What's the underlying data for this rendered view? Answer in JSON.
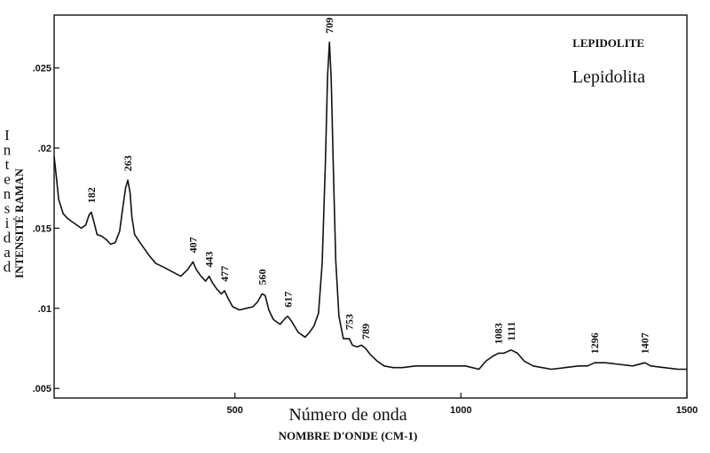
{
  "chart_data": {
    "type": "line",
    "title": "LEPIDOLITE",
    "subtitle": "Lepidolita",
    "xlabel": "NOMBRE D'ONDE (CM-1)",
    "xlabel_es": "Número de onda",
    "ylabel": "INTENSITÉ RAMAN",
    "ylabel_es": "Intensidad",
    "xlim": [
      100,
      1500
    ],
    "ylim": [
      0.0044,
      0.0283
    ],
    "x_ticks": [
      500,
      1000,
      1500
    ],
    "y_ticks": [
      ".005",
      ".01",
      ".015",
      ".02",
      ".025"
    ],
    "y_tick_values": [
      0.005,
      0.01,
      0.015,
      0.02,
      0.025
    ],
    "grid": false,
    "series": [
      {
        "points": [
          [
            100,
            0.0195
          ],
          [
            105,
            0.0182
          ],
          [
            110,
            0.0168
          ],
          [
            120,
            0.0159
          ],
          [
            130,
            0.0156
          ],
          [
            145,
            0.0153
          ],
          [
            160,
            0.015
          ],
          [
            170,
            0.0152
          ],
          [
            177,
            0.0158
          ],
          [
            182,
            0.016
          ],
          [
            188,
            0.0154
          ],
          [
            195,
            0.0146
          ],
          [
            205,
            0.0145
          ],
          [
            215,
            0.0143
          ],
          [
            225,
            0.014
          ],
          [
            235,
            0.0141
          ],
          [
            245,
            0.0148
          ],
          [
            252,
            0.0163
          ],
          [
            258,
            0.0175
          ],
          [
            263,
            0.018
          ],
          [
            268,
            0.0172
          ],
          [
            272,
            0.0157
          ],
          [
            278,
            0.0146
          ],
          [
            290,
            0.0141
          ],
          [
            300,
            0.0137
          ],
          [
            310,
            0.0133
          ],
          [
            325,
            0.0128
          ],
          [
            340,
            0.0126
          ],
          [
            360,
            0.0123
          ],
          [
            380,
            0.012
          ],
          [
            395,
            0.0124
          ],
          [
            407,
            0.0129
          ],
          [
            415,
            0.0124
          ],
          [
            425,
            0.012
          ],
          [
            435,
            0.0117
          ],
          [
            443,
            0.012
          ],
          [
            450,
            0.0116
          ],
          [
            460,
            0.0112
          ],
          [
            470,
            0.0109
          ],
          [
            477,
            0.0111
          ],
          [
            485,
            0.0106
          ],
          [
            495,
            0.0101
          ],
          [
            510,
            0.0099
          ],
          [
            525,
            0.01
          ],
          [
            540,
            0.0101
          ],
          [
            550,
            0.0104
          ],
          [
            560,
            0.0109
          ],
          [
            567,
            0.0108
          ],
          [
            575,
            0.0099
          ],
          [
            585,
            0.0093
          ],
          [
            600,
            0.009
          ],
          [
            612,
            0.0094
          ],
          [
            617,
            0.0095
          ],
          [
            625,
            0.0092
          ],
          [
            640,
            0.0085
          ],
          [
            655,
            0.0082
          ],
          [
            665,
            0.0085
          ],
          [
            675,
            0.0089
          ],
          [
            685,
            0.0097
          ],
          [
            693,
            0.0128
          ],
          [
            700,
            0.019
          ],
          [
            705,
            0.0245
          ],
          [
            709,
            0.0266
          ],
          [
            713,
            0.0243
          ],
          [
            718,
            0.0185
          ],
          [
            723,
            0.013
          ],
          [
            730,
            0.0095
          ],
          [
            740,
            0.0081
          ],
          [
            753,
            0.0081
          ],
          [
            760,
            0.0077
          ],
          [
            770,
            0.0076
          ],
          [
            780,
            0.0077
          ],
          [
            789,
            0.0075
          ],
          [
            800,
            0.0071
          ],
          [
            815,
            0.0067
          ],
          [
            830,
            0.0064
          ],
          [
            850,
            0.0063
          ],
          [
            870,
            0.0063
          ],
          [
            900,
            0.0064
          ],
          [
            930,
            0.0064
          ],
          [
            960,
            0.0064
          ],
          [
            990,
            0.0064
          ],
          [
            1010,
            0.0064
          ],
          [
            1025,
            0.0063
          ],
          [
            1040,
            0.0062
          ],
          [
            1055,
            0.0067
          ],
          [
            1070,
            0.007
          ],
          [
            1083,
            0.0072
          ],
          [
            1095,
            0.0072
          ],
          [
            1111,
            0.0074
          ],
          [
            1125,
            0.0072
          ],
          [
            1140,
            0.0067
          ],
          [
            1160,
            0.0064
          ],
          [
            1180,
            0.0063
          ],
          [
            1200,
            0.0062
          ],
          [
            1230,
            0.0063
          ],
          [
            1260,
            0.0064
          ],
          [
            1280,
            0.0064
          ],
          [
            1296,
            0.0066
          ],
          [
            1320,
            0.0066
          ],
          [
            1350,
            0.0065
          ],
          [
            1380,
            0.0064
          ],
          [
            1407,
            0.0066
          ],
          [
            1420,
            0.0064
          ],
          [
            1450,
            0.0063
          ],
          [
            1480,
            0.0062
          ],
          [
            1500,
            0.0062
          ]
        ]
      }
    ],
    "peaks": [
      {
        "label": "182",
        "x": 182,
        "y": 0.016
      },
      {
        "label": "263",
        "x": 263,
        "y": 0.018
      },
      {
        "label": "407",
        "x": 407,
        "y": 0.0129
      },
      {
        "label": "443",
        "x": 443,
        "y": 0.012
      },
      {
        "label": "477",
        "x": 477,
        "y": 0.0111
      },
      {
        "label": "560",
        "x": 560,
        "y": 0.0109
      },
      {
        "label": "617",
        "x": 617,
        "y": 0.0095
      },
      {
        "label": "709",
        "x": 709,
        "y": 0.0266
      },
      {
        "label": "753",
        "x": 753,
        "y": 0.0081
      },
      {
        "label": "789",
        "x": 789,
        "y": 0.0075
      },
      {
        "label": "1083",
        "x": 1083,
        "y": 0.0072
      },
      {
        "label": "1111",
        "x": 1111,
        "y": 0.0074
      },
      {
        "label": "1296",
        "x": 1296,
        "y": 0.0066
      },
      {
        "label": "1407",
        "x": 1407,
        "y": 0.0066
      }
    ]
  }
}
